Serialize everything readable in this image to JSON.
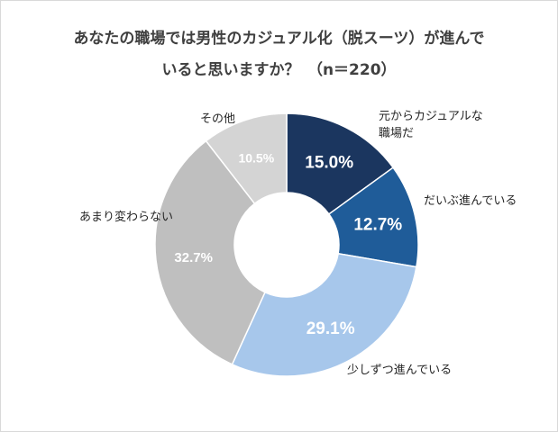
{
  "chart_data": {
    "type": "pie",
    "donut": true,
    "title_line1": "あなたの職場では男性のカジュアル化（脱スーツ）が進んで",
    "title_line2": "いると思いますか？　（n＝220）",
    "slices": [
      {
        "label": "元からカジュアルな職場だ",
        "label_line1": "元からカジュアルな",
        "label_line2": "職場だ",
        "value": 15.0,
        "value_label": "15.0%",
        "color": "#1b365f",
        "text_color": "#ffffff"
      },
      {
        "label": "だいぶ進んでいる",
        "value": 12.7,
        "value_label": "12.7%",
        "color": "#1f5c99",
        "text_color": "#ffffff"
      },
      {
        "label": "少しずつ進んでいる",
        "value": 29.1,
        "value_label": "29.1%",
        "color": "#a7c7eb",
        "text_color": "#ffffff"
      },
      {
        "label": "あまり変わらない",
        "value": 32.7,
        "value_label": "32.7%",
        "color": "#bfbfbf",
        "text_color": "#ffffff"
      },
      {
        "label": "その他",
        "value": 10.5,
        "value_label": "10.5%",
        "color": "#d4d4d4",
        "text_color": "#ffffff"
      }
    ],
    "start_angle": "top",
    "direction": "clockwise"
  }
}
